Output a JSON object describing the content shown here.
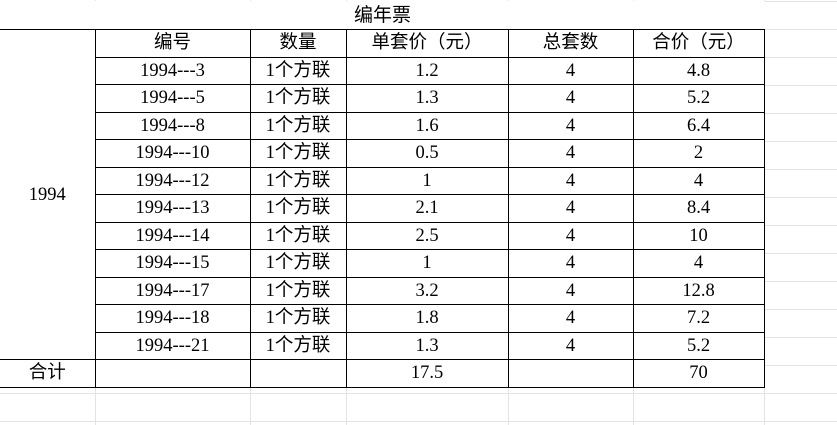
{
  "title": "编年票",
  "year_label": "1994",
  "headers": [
    "编号",
    "数量",
    "单套价（元）",
    "总套数",
    "合价（元）"
  ],
  "rows": [
    {
      "id": "1994---3",
      "qty": "1个方联",
      "unit_price": "1.2",
      "sets": "4",
      "total": "4.8"
    },
    {
      "id": "1994---5",
      "qty": "1个方联",
      "unit_price": "1.3",
      "sets": "4",
      "total": "5.2"
    },
    {
      "id": "1994---8",
      "qty": "1个方联",
      "unit_price": "1.6",
      "sets": "4",
      "total": "6.4"
    },
    {
      "id": "1994---10",
      "qty": "1个方联",
      "unit_price": "0.5",
      "sets": "4",
      "total": "2"
    },
    {
      "id": "1994---12",
      "qty": "1个方联",
      "unit_price": "1",
      "sets": "4",
      "total": "4"
    },
    {
      "id": "1994---13",
      "qty": "1个方联",
      "unit_price": "2.1",
      "sets": "4",
      "total": "8.4"
    },
    {
      "id": "1994---14",
      "qty": "1个方联",
      "unit_price": "2.5",
      "sets": "4",
      "total": "10"
    },
    {
      "id": "1994---15",
      "qty": "1个方联",
      "unit_price": "1",
      "sets": "4",
      "total": "4"
    },
    {
      "id": "1994---17",
      "qty": "1个方联",
      "unit_price": "3.2",
      "sets": "4",
      "total": "12.8"
    },
    {
      "id": "1994---18",
      "qty": "1个方联",
      "unit_price": "1.8",
      "sets": "4",
      "total": "7.2"
    },
    {
      "id": "1994---21",
      "qty": "1个方联",
      "unit_price": "1.3",
      "sets": "4",
      "total": "5.2"
    }
  ],
  "summary": {
    "label": "合计",
    "unit_price_sum": "17.5",
    "total_sum": "70"
  }
}
